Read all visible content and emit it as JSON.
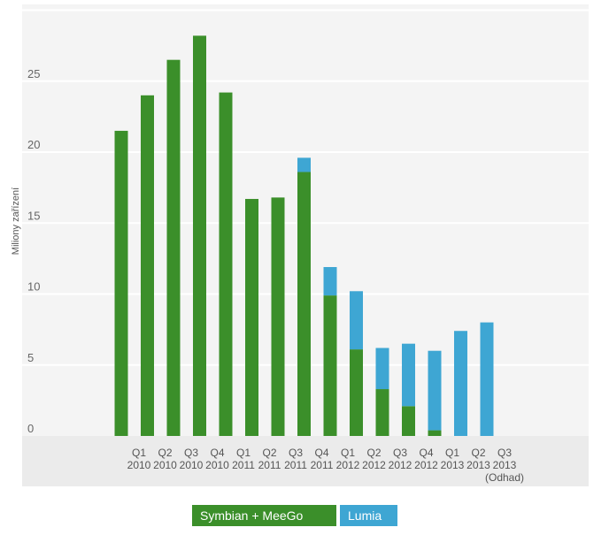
{
  "colors": {
    "symbian_meego": "#3b8f2a",
    "lumia": "#3ea6d3",
    "plot_bg": "#f4f4f4",
    "grid": "#ffffff",
    "category_band": "#ebebeb"
  },
  "chart_data": {
    "type": "bar",
    "stacked": true,
    "ylabel": "Miliony zařízení",
    "ylim": [
      0,
      30
    ],
    "yticks": [
      "0",
      "5",
      "10",
      "15",
      "20",
      "25"
    ],
    "categories": [
      [
        "Q1",
        "2010"
      ],
      [
        "Q2",
        "2010"
      ],
      [
        "Q3",
        "2010"
      ],
      [
        "Q4",
        "2010"
      ],
      [
        "Q1",
        "2011"
      ],
      [
        "Q2",
        "2011"
      ],
      [
        "Q3",
        "2011"
      ],
      [
        "Q4",
        "2011"
      ],
      [
        "Q1",
        "2012"
      ],
      [
        "Q2",
        "2012"
      ],
      [
        "Q3",
        "2012"
      ],
      [
        "Q4",
        "2012"
      ],
      [
        "Q1",
        "2013"
      ],
      [
        "Q2",
        "2013"
      ],
      [
        "Q3",
        "2013",
        "(Odhad)"
      ]
    ],
    "series": [
      {
        "name": "Symbian + MeeGo",
        "values": [
          21.5,
          24.0,
          26.5,
          28.2,
          24.2,
          16.7,
          16.8,
          18.6,
          9.9,
          6.1,
          3.3,
          2.1,
          0.4,
          0,
          0
        ]
      },
      {
        "name": "Lumia",
        "values": [
          0,
          0,
          0,
          0,
          0,
          0,
          0,
          1.0,
          2.0,
          4.1,
          2.9,
          4.4,
          5.6,
          7.4,
          8.0
        ]
      }
    ],
    "grid": true,
    "legend_position": "bottom"
  },
  "legend": {
    "symbian_meego_label": "Symbian + MeeGo",
    "lumia_label": "Lumia"
  }
}
